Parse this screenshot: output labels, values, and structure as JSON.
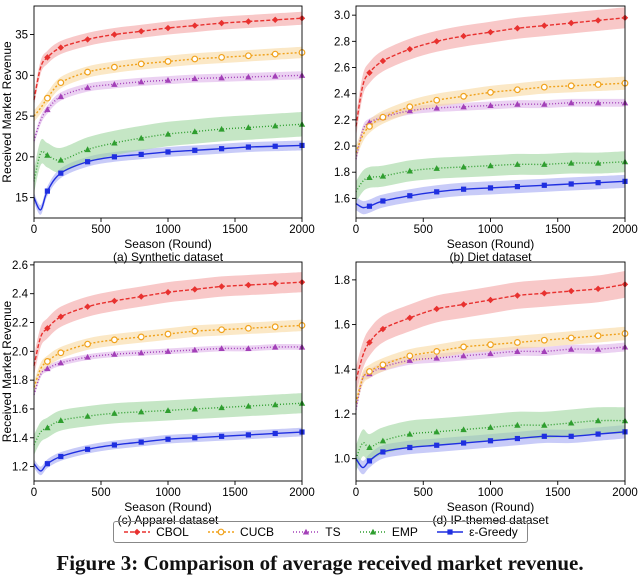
{
  "caption": "Figure 3: Comparison of average received market revenue.",
  "chart_data": [
    {
      "type": "line",
      "subplot_label": "(a) Synthetic dataset",
      "xlabel": "Season (Round)",
      "ylabel": "Received Market Revenue",
      "xlim": [
        0,
        2000
      ],
      "ylim": [
        12.5,
        38.5
      ],
      "xticks": [
        0,
        500,
        1000,
        1500,
        2000
      ],
      "yticks": [
        15,
        20,
        25,
        30,
        35
      ],
      "x": [
        0,
        50,
        100,
        200,
        400,
        600,
        800,
        1000,
        1200,
        1400,
        1600,
        1800,
        2000
      ],
      "series": [
        {
          "name": "CBOL",
          "values": [
            27.0,
            31.0,
            32.2,
            33.4,
            34.4,
            35.0,
            35.4,
            35.8,
            36.1,
            36.4,
            36.6,
            36.8,
            37.0
          ],
          "band": 0.8
        },
        {
          "name": "CUCB",
          "values": [
            25.0,
            26.0,
            27.2,
            29.1,
            30.4,
            31.0,
            31.4,
            31.7,
            32.0,
            32.2,
            32.4,
            32.6,
            32.8
          ],
          "band": 0.7
        },
        {
          "name": "TS",
          "values": [
            22.0,
            24.5,
            25.8,
            27.4,
            28.5,
            28.9,
            29.2,
            29.4,
            29.6,
            29.7,
            29.8,
            29.9,
            30.0
          ],
          "band": 0.5
        },
        {
          "name": "EMP",
          "values": [
            17.0,
            20.5,
            20.2,
            19.6,
            20.9,
            21.7,
            22.3,
            22.8,
            23.1,
            23.4,
            23.6,
            23.8,
            24.0
          ],
          "band": 1.5
        },
        {
          "name": "ε-Greedy",
          "values": [
            15.0,
            13.5,
            15.8,
            18.0,
            19.4,
            20.0,
            20.3,
            20.6,
            20.8,
            21.0,
            21.2,
            21.3,
            21.4
          ],
          "band": 0.6
        }
      ]
    },
    {
      "type": "line",
      "subplot_label": "(b) Diet dataset",
      "xlabel": "Season (Round)",
      "ylabel": "",
      "xlim": [
        0,
        2000
      ],
      "ylim": [
        1.45,
        3.07
      ],
      "xticks": [
        0,
        500,
        1000,
        1500,
        2000
      ],
      "yticks": [
        1.6,
        1.8,
        2.0,
        2.2,
        2.4,
        2.6,
        2.8,
        3.0
      ],
      "x": [
        0,
        50,
        100,
        200,
        400,
        600,
        800,
        1000,
        1200,
        1400,
        1600,
        1800,
        2000
      ],
      "series": [
        {
          "name": "CBOL",
          "values": [
            2.15,
            2.46,
            2.56,
            2.65,
            2.74,
            2.8,
            2.84,
            2.87,
            2.9,
            2.92,
            2.94,
            2.96,
            2.98
          ],
          "band": 0.08
        },
        {
          "name": "CUCB",
          "values": [
            1.95,
            2.08,
            2.15,
            2.22,
            2.3,
            2.35,
            2.38,
            2.41,
            2.43,
            2.45,
            2.46,
            2.47,
            2.48
          ],
          "band": 0.05
        },
        {
          "name": "TS",
          "values": [
            1.9,
            2.12,
            2.18,
            2.22,
            2.27,
            2.29,
            2.3,
            2.31,
            2.32,
            2.32,
            2.33,
            2.33,
            2.33
          ],
          "band": 0.03
        },
        {
          "name": "EMP",
          "values": [
            1.65,
            1.73,
            1.76,
            1.77,
            1.81,
            1.83,
            1.84,
            1.85,
            1.86,
            1.86,
            1.87,
            1.87,
            1.88
          ],
          "band": 0.08
        },
        {
          "name": "ε-Greedy",
          "values": [
            1.56,
            1.53,
            1.54,
            1.58,
            1.62,
            1.65,
            1.67,
            1.68,
            1.69,
            1.7,
            1.71,
            1.72,
            1.73
          ],
          "band": 0.05
        }
      ]
    },
    {
      "type": "line",
      "subplot_label": "(c) Apparel dataset",
      "xlabel": "Season (Round)",
      "ylabel": "Received Market Revenue",
      "xlim": [
        0,
        2000
      ],
      "ylim": [
        1.1,
        2.62
      ],
      "xticks": [
        0,
        500,
        1000,
        1500,
        2000
      ],
      "yticks": [
        1.2,
        1.4,
        1.6,
        1.8,
        2.0,
        2.2,
        2.4,
        2.6
      ],
      "x": [
        0,
        50,
        100,
        200,
        400,
        600,
        800,
        1000,
        1200,
        1400,
        1600,
        1800,
        2000
      ],
      "series": [
        {
          "name": "CBOL",
          "values": [
            1.9,
            2.1,
            2.16,
            2.24,
            2.31,
            2.35,
            2.38,
            2.41,
            2.43,
            2.45,
            2.46,
            2.47,
            2.48
          ],
          "band": 0.07
        },
        {
          "name": "CUCB",
          "values": [
            1.75,
            1.88,
            1.93,
            1.99,
            2.05,
            2.08,
            2.1,
            2.12,
            2.14,
            2.15,
            2.16,
            2.17,
            2.18
          ],
          "band": 0.04
        },
        {
          "name": "TS",
          "values": [
            1.7,
            1.84,
            1.88,
            1.92,
            1.96,
            1.98,
            1.99,
            2.0,
            2.01,
            2.02,
            2.02,
            2.03,
            2.03
          ],
          "band": 0.02
        },
        {
          "name": "EMP",
          "values": [
            1.35,
            1.44,
            1.47,
            1.52,
            1.55,
            1.57,
            1.58,
            1.59,
            1.6,
            1.61,
            1.62,
            1.63,
            1.64
          ],
          "band": 0.07
        },
        {
          "name": "ε-Greedy",
          "values": [
            1.22,
            1.17,
            1.22,
            1.27,
            1.32,
            1.35,
            1.37,
            1.39,
            1.4,
            1.41,
            1.42,
            1.43,
            1.44
          ],
          "band": 0.03
        }
      ]
    },
    {
      "type": "line",
      "subplot_label": "(d) IP-themed dataset",
      "xlabel": "Season (Round)",
      "ylabel": "",
      "xlim": [
        0,
        2000
      ],
      "ylim": [
        0.9,
        1.88
      ],
      "xticks": [
        0,
        500,
        1000,
        1500,
        2000
      ],
      "yticks": [
        1.0,
        1.2,
        1.4,
        1.6,
        1.8
      ],
      "x": [
        0,
        50,
        100,
        200,
        400,
        600,
        800,
        1000,
        1200,
        1400,
        1600,
        1800,
        2000
      ],
      "series": [
        {
          "name": "CBOL",
          "values": [
            1.35,
            1.46,
            1.52,
            1.58,
            1.63,
            1.67,
            1.69,
            1.71,
            1.73,
            1.74,
            1.75,
            1.76,
            1.78
          ],
          "band": 0.06
        },
        {
          "name": "CUCB",
          "values": [
            1.25,
            1.36,
            1.39,
            1.42,
            1.46,
            1.48,
            1.5,
            1.51,
            1.52,
            1.53,
            1.54,
            1.55,
            1.56
          ],
          "band": 0.03
        },
        {
          "name": "TS",
          "values": [
            1.22,
            1.36,
            1.38,
            1.41,
            1.44,
            1.45,
            1.46,
            1.47,
            1.48,
            1.48,
            1.49,
            1.49,
            1.5
          ],
          "band": 0.02
        },
        {
          "name": "EMP",
          "values": [
            1.0,
            1.07,
            1.05,
            1.08,
            1.11,
            1.12,
            1.13,
            1.14,
            1.15,
            1.15,
            1.16,
            1.17,
            1.17
          ],
          "band": 0.06
        },
        {
          "name": "ε-Greedy",
          "values": [
            1.0,
            0.96,
            0.99,
            1.03,
            1.05,
            1.06,
            1.07,
            1.08,
            1.09,
            1.1,
            1.1,
            1.11,
            1.12
          ],
          "band": 0.03
        }
      ]
    }
  ],
  "legend": [
    {
      "name": "CBOL",
      "color": "#e8312f",
      "dash": "4,2",
      "marker": "diamond"
    },
    {
      "name": "CUCB",
      "color": "#f0a21c",
      "dash": "2,2",
      "marker": "circle-open"
    },
    {
      "name": "TS",
      "color": "#a340b8",
      "dash": "1,2",
      "marker": "triangle"
    },
    {
      "name": "EMP",
      "color": "#2f9e2f",
      "dash": "1,2",
      "marker": "triangle"
    },
    {
      "name": "ε-Greedy",
      "color": "#1f2fe0",
      "dash": "",
      "marker": "square"
    }
  ],
  "band_colors": {
    "CBOL": "#f4a3a3",
    "CUCB": "#f8d9a0",
    "TS": "#ddb3ea",
    "EMP": "#9ed69e",
    "ε-Greedy": "#a3a8f4"
  }
}
